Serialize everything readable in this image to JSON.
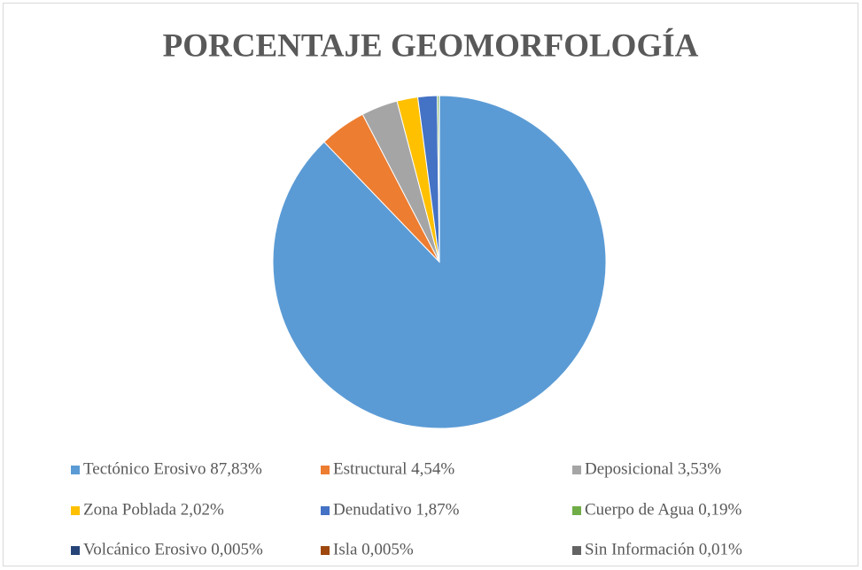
{
  "chart_data": {
    "type": "pie",
    "title": "PORCENTAJE GEOMORFOLOGÍA",
    "categories": [
      "Tectónico Erosivo 87,83%",
      "Estructural 4,54%",
      "Deposicional 3,53%",
      "Zona Poblada 2,02%",
      "Denudativo 1,87%",
      "Cuerpo de Agua 0,19%",
      "Volcánico Erosivo 0,005%",
      "Isla 0,005%",
      "Sin Información 0,01%"
    ],
    "values": [
      87.83,
      4.54,
      3.53,
      2.02,
      1.87,
      0.19,
      0.005,
      0.005,
      0.01
    ],
    "colors": [
      "#5b9bd5",
      "#ed7d31",
      "#a5a5a5",
      "#ffc000",
      "#4472c4",
      "#70ad47",
      "#264478",
      "#9e480e",
      "#636363"
    ],
    "legend": "bottom"
  }
}
